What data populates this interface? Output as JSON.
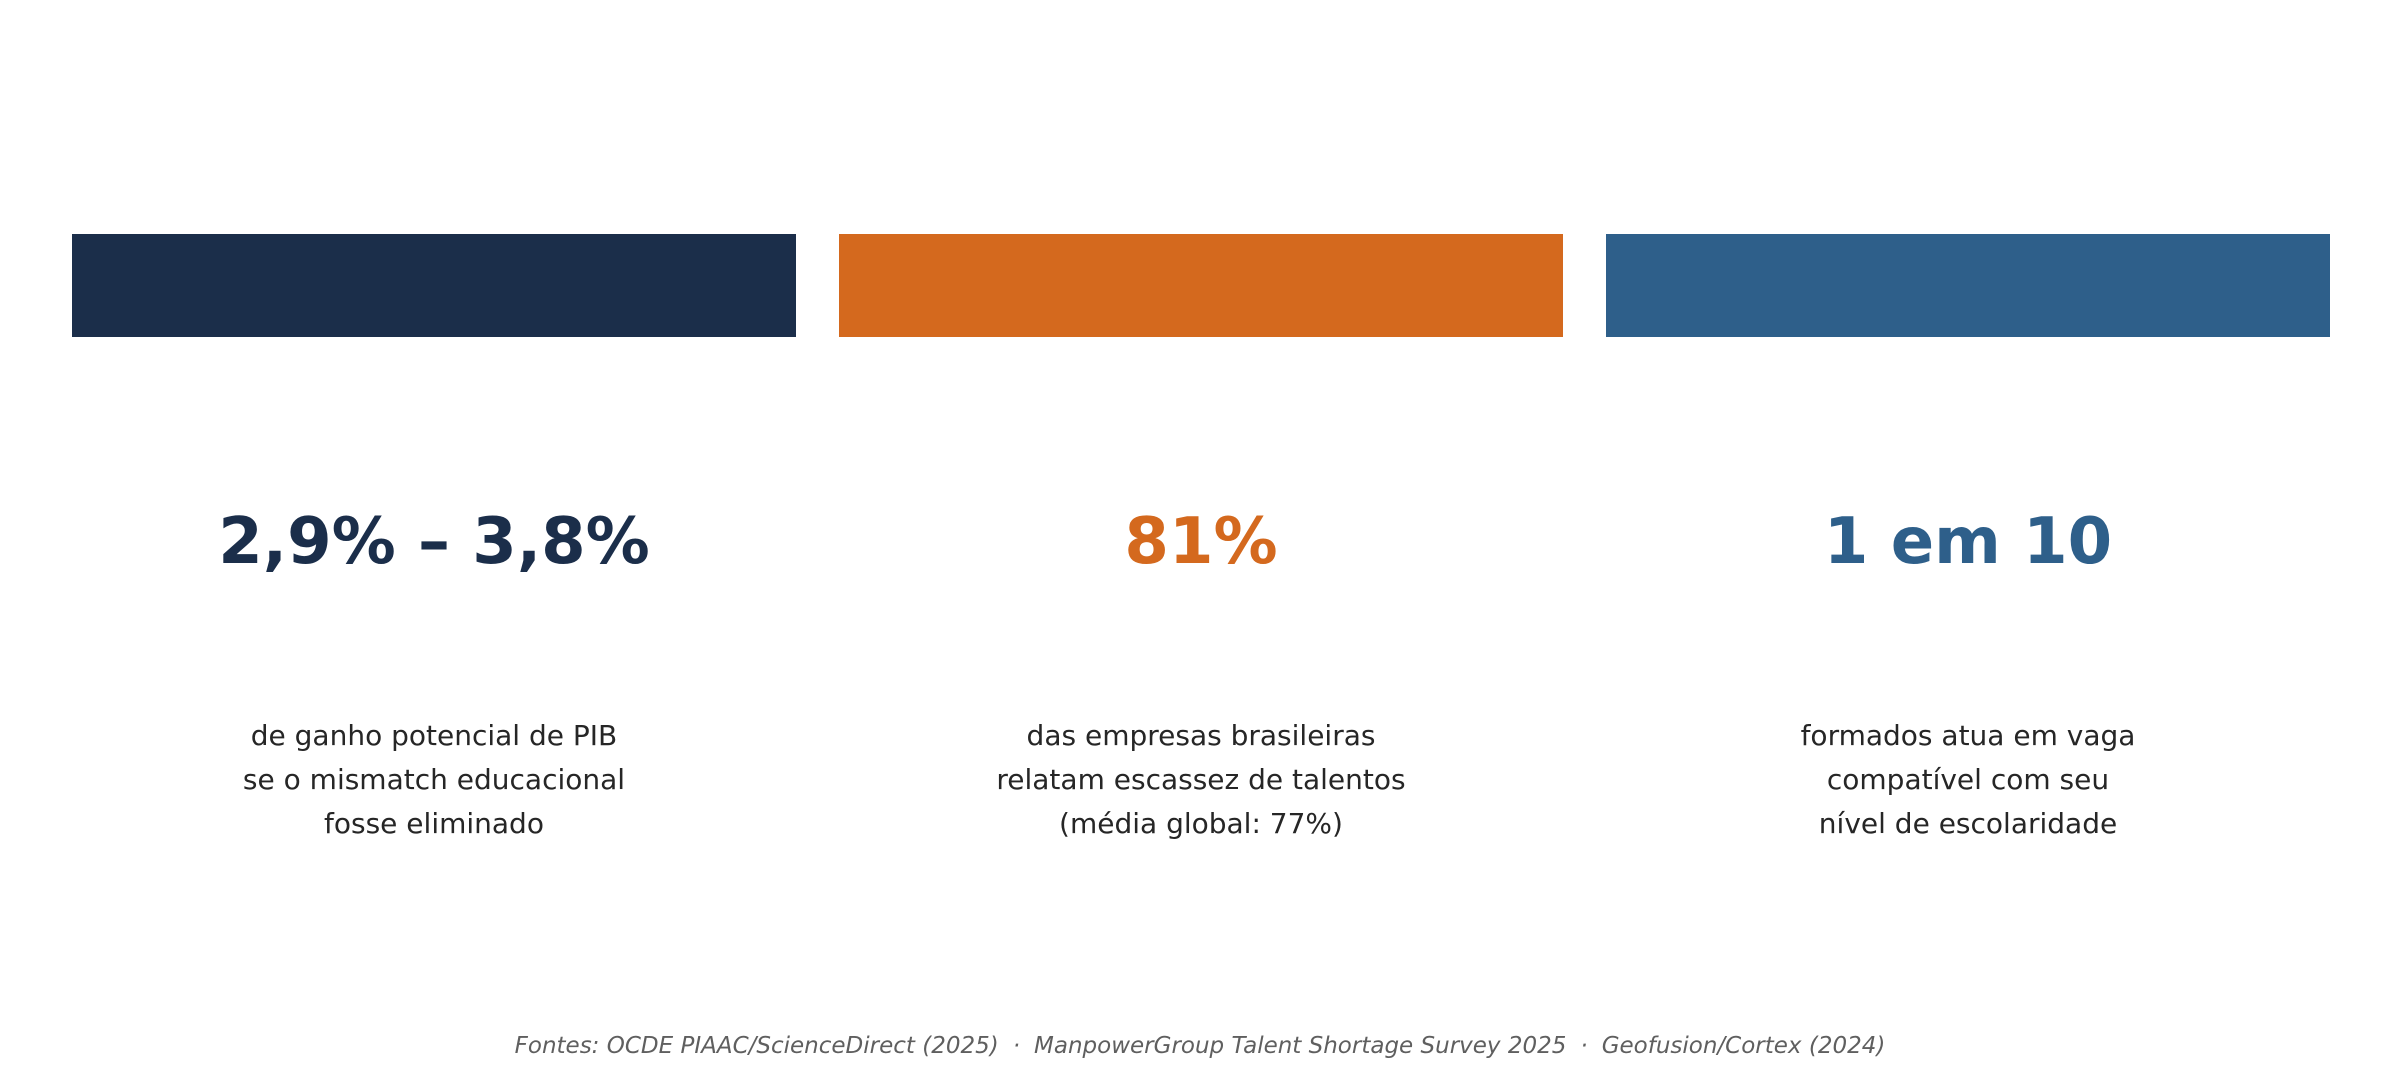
{
  "cards": [
    {
      "stat": "2,9% – 3,8%",
      "description": [
        "de ganho potencial de PIB",
        "se o mismatch educacional",
        "fosse eliminado"
      ],
      "color": "#1b2e4a"
    },
    {
      "stat": "81%",
      "description": [
        "das empresas brasileiras",
        "relatam escassez de talentos",
        "(média global: 77%)"
      ],
      "color": "#d4691e"
    },
    {
      "stat": "1 em 10",
      "description": [
        "formados atua em vaga",
        "compatível com seu",
        "nível de escolaridade"
      ],
      "color": "#2e5f8a"
    }
  ],
  "footer": {
    "prefix": "Fontes:",
    "sources": [
      "OCDE PIAAC/ScienceDirect (2025)",
      "ManpowerGroup Talent Shortage Survey 2025",
      "Geofusion/Cortex (2024)"
    ],
    "separator": "·"
  }
}
